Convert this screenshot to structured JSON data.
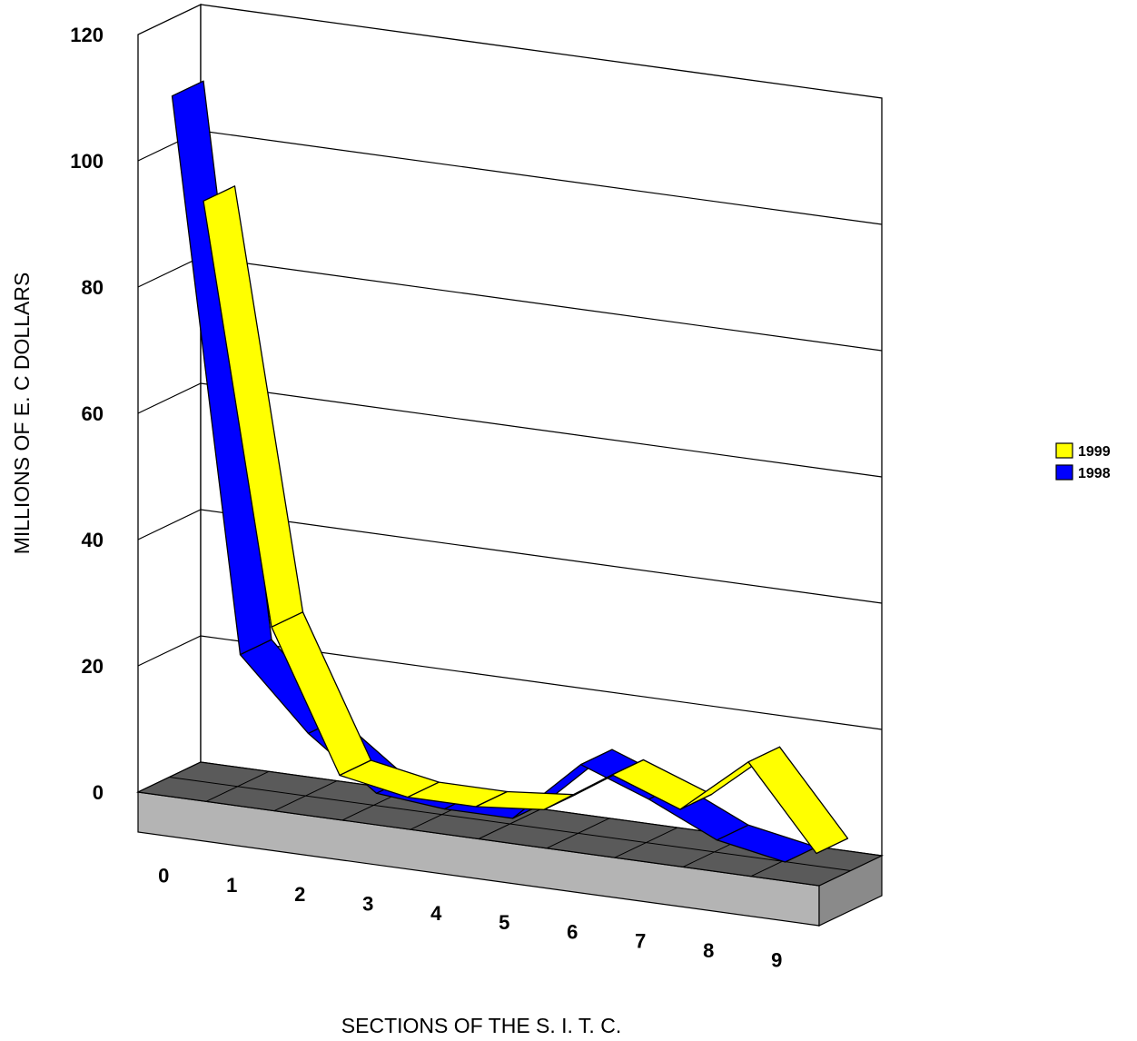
{
  "chart_data": {
    "type": "line",
    "style": "3d-ribbon",
    "categories": [
      "0",
      "1",
      "2",
      "3",
      "4",
      "5",
      "6",
      "7",
      "8",
      "9"
    ],
    "series": [
      {
        "name": "1999",
        "color": "#ffff00",
        "values": [
          92,
          26,
          4,
          2,
          2,
          3,
          10,
          6,
          15,
          2
        ]
      },
      {
        "name": "1998",
        "color": "#0000ff",
        "values": [
          111,
          24,
          13,
          5,
          4,
          4,
          14,
          10,
          5,
          3
        ]
      }
    ],
    "ylim": [
      0,
      120
    ],
    "yticks": [
      "0",
      "20",
      "40",
      "60",
      "80",
      "100",
      "120"
    ],
    "xlabel": "SECTIONS OF THE S. I. T. C.",
    "ylabel": "MILLIONS OF E. C DOLLARS",
    "grid": true,
    "legend_position": "right"
  }
}
